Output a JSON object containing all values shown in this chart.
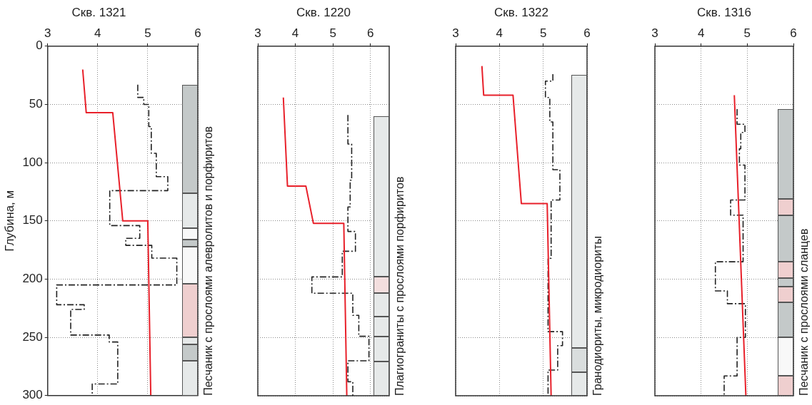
{
  "chart_data": [
    {
      "type": "line",
      "title": "Скв. 1321",
      "ylabel": "Глубина, м",
      "orientation": "horizontal",
      "xlim": [
        3,
        6
      ],
      "xticks": [
        3,
        4,
        5,
        6
      ],
      "ylim": [
        300,
        0
      ],
      "yticks": [
        0,
        50,
        100,
        150,
        200,
        250,
        300
      ],
      "grid": true,
      "series": [
        {
          "type": "line",
          "color": "#e8202a",
          "line_style": "solid",
          "x": [
            20,
            57,
            57,
            150,
            150,
            300
          ],
          "values": [
            3.7,
            3.77,
            4.3,
            4.5,
            5.0,
            5.06
          ]
        },
        {
          "type": "step",
          "color": "#222222",
          "line_style": "dashed",
          "x": [
            33,
            44,
            50,
            69,
            92,
            112,
            124,
            154,
            165,
            171,
            182,
            205,
            222,
            226,
            248,
            254,
            290,
            300
          ],
          "values": [
            4.8,
            4.92,
            5.02,
            5.07,
            5.17,
            5.4,
            4.24,
            4.84,
            4.56,
            5.08,
            5.58,
            3.18,
            3.73,
            3.46,
            4.23,
            4.4,
            3.89,
            3.89
          ]
        }
      ],
      "annotations": [
        "Песчаник с прослоями алевролитов и порфиритов"
      ]
    },
    {
      "type": "line",
      "title": "Скв. 1220",
      "orientation": "horizontal",
      "xlim": [
        3,
        6.5
      ],
      "xticks": [
        3,
        4,
        5,
        6
      ],
      "ylim": [
        300,
        0
      ],
      "yticks": [
        0,
        50,
        100,
        150,
        200,
        250,
        300
      ],
      "grid": true,
      "tick_labels": "x",
      "series": [
        {
          "type": "line",
          "color": "#e8202a",
          "line_style": "solid",
          "x": [
            44,
            120,
            120,
            152,
            152,
            300
          ],
          "values": [
            3.68,
            3.79,
            4.28,
            4.48,
            5.29,
            5.37
          ]
        },
        {
          "type": "step",
          "color": "#222222",
          "line_style": "dashed",
          "x": [
            59,
            84,
            115,
            138,
            159,
            176,
            198,
            212,
            231,
            249,
            270,
            288,
            300
          ],
          "values": [
            5.4,
            5.5,
            5.46,
            5.4,
            5.6,
            5.25,
            4.44,
            5.53,
            5.69,
            5.96,
            5.4,
            5.53,
            5.53
          ]
        }
      ],
      "annotations": [
        "Плагиограниты с прослоями порфиритов"
      ]
    },
    {
      "type": "line",
      "title": "Скв. 1322",
      "orientation": "horizontal",
      "xlim": [
        3,
        6
      ],
      "xticks": [
        3,
        4,
        5,
        6
      ],
      "ylim": [
        300,
        0
      ],
      "yticks": [
        0,
        50,
        100,
        150,
        200,
        250,
        300
      ],
      "grid": true,
      "tick_labels": "x",
      "series": [
        {
          "type": "line",
          "color": "#e8202a",
          "line_style": "solid",
          "x": [
            17,
            42,
            42,
            135,
            135,
            300
          ],
          "values": [
            3.6,
            3.64,
            4.31,
            4.5,
            5.09,
            5.18
          ]
        },
        {
          "type": "step",
          "color": "#222222",
          "line_style": "dashed",
          "x": [
            24,
            30,
            44,
            65,
            106,
            132,
            182,
            245,
            257,
            278,
            300
          ],
          "values": [
            5.22,
            5.05,
            5.15,
            5.22,
            5.38,
            5.18,
            5.11,
            5.44,
            5.33,
            5.11,
            5.11
          ]
        }
      ],
      "annotations": [
        "Гранодиориты, микродиориты"
      ]
    },
    {
      "type": "line",
      "title": "Скв. 1316",
      "orientation": "horizontal",
      "xlim": [
        3,
        6
      ],
      "xticks": [
        3,
        4,
        5,
        6
      ],
      "ylim": [
        300,
        0
      ],
      "yticks": [
        0,
        50,
        100,
        150,
        200,
        250,
        300
      ],
      "grid": true,
      "tick_labels": "x",
      "series": [
        {
          "type": "line",
          "color": "#e8202a",
          "line_style": "solid",
          "x": [
            42,
            300
          ],
          "values": [
            4.72,
            4.97
          ]
        },
        {
          "type": "step",
          "color": "#222222",
          "line_style": "dashed",
          "x": [
            54,
            67,
            74,
            88,
            102,
            132,
            145,
            185,
            210,
            221,
            250,
            283,
            300
          ],
          "values": [
            4.78,
            4.95,
            4.86,
            4.83,
            4.95,
            4.64,
            4.91,
            4.31,
            4.57,
            4.96,
            4.78,
            4.5,
            4.5
          ]
        }
      ],
      "annotations": [
        "Песчаник с прослоями сланцев"
      ]
    }
  ]
}
